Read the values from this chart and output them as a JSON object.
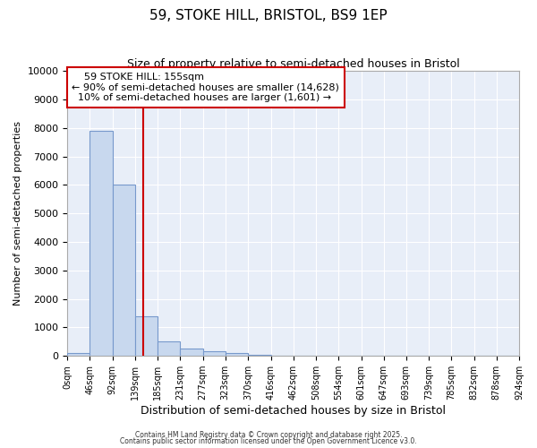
{
  "title": "59, STOKE HILL, BRISTOL, BS9 1EP",
  "subtitle": "Size of property relative to semi-detached houses in Bristol",
  "xlabel": "Distribution of semi-detached houses by size in Bristol",
  "ylabel": "Number of semi-detached properties",
  "bin_edges": [
    0,
    46,
    92,
    139,
    185,
    231,
    277,
    323,
    370,
    416,
    462,
    508,
    554,
    601,
    647,
    693,
    739,
    785,
    832,
    878,
    924
  ],
  "bin_labels": [
    "0sqm",
    "46sqm",
    "92sqm",
    "139sqm",
    "185sqm",
    "231sqm",
    "277sqm",
    "323sqm",
    "370sqm",
    "416sqm",
    "462sqm",
    "508sqm",
    "554sqm",
    "601sqm",
    "647sqm",
    "693sqm",
    "739sqm",
    "785sqm",
    "832sqm",
    "878sqm",
    "924sqm"
  ],
  "bar_values": [
    110,
    7900,
    6000,
    1400,
    500,
    250,
    175,
    100,
    30,
    0,
    0,
    0,
    0,
    0,
    0,
    0,
    0,
    0,
    0,
    0
  ],
  "bar_color": "#c8d8ee",
  "bar_edge_color": "#7799cc",
  "property_size": 155,
  "property_label": "59 STOKE HILL: 155sqm",
  "pct_smaller": 90,
  "n_smaller": 14628,
  "pct_larger": 10,
  "n_larger": 1601,
  "vline_color": "#cc0000",
  "annotation_box_color": "#cc0000",
  "ylim": [
    0,
    10000
  ],
  "yticks": [
    0,
    1000,
    2000,
    3000,
    4000,
    5000,
    6000,
    7000,
    8000,
    9000,
    10000
  ],
  "background_color": "#ffffff",
  "plot_bg_color": "#e8eef8",
  "grid_color": "#ffffff",
  "footer_line1": "Contains HM Land Registry data © Crown copyright and database right 2025.",
  "footer_line2": "Contains public sector information licensed under the Open Government Licence v3.0."
}
